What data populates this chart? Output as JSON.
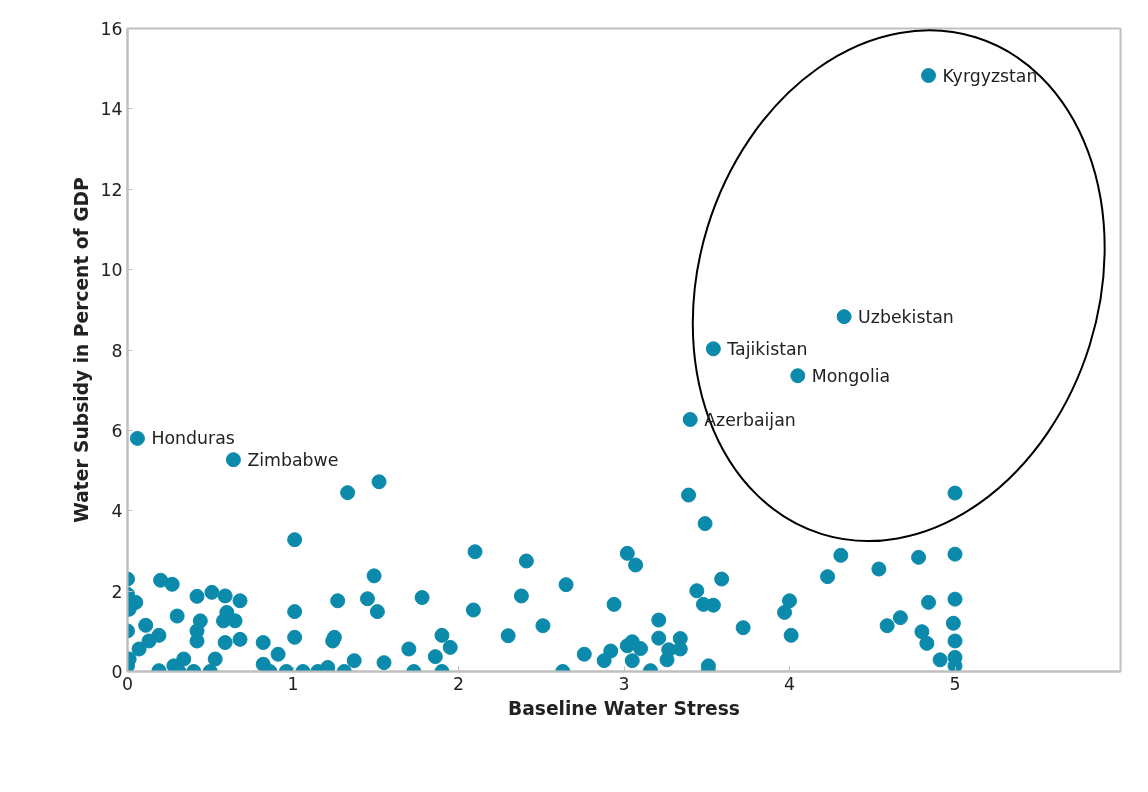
{
  "chart_data": {
    "type": "scatter",
    "xlabel": "Baseline Water Stress",
    "ylabel": "Water Subsidy in Percent of GDP",
    "xlim": [
      0,
      6
    ],
    "xticks": [
      0,
      1,
      2,
      3,
      4,
      5
    ],
    "ylim": [
      0,
      16
    ],
    "yticks": [
      0,
      2,
      4,
      6,
      8,
      10,
      12,
      14,
      16
    ],
    "grid": false,
    "marker": "circle",
    "series": [
      {
        "color": "#0b8aab",
        "x": [
          0.06,
          0.64,
          1.33,
          1.52,
          1.01,
          2.1,
          0.0,
          0.2,
          0.27,
          0.0,
          0.05,
          0.01,
          0.42,
          0.51,
          0.59,
          0.68,
          0.3,
          0.11,
          0.44,
          0.6,
          0.58,
          0.65,
          0.42,
          0.42,
          0.0,
          0.19,
          0.13,
          0.07,
          0.01,
          0.0,
          0.59,
          0.68,
          0.82,
          1.01,
          1.25,
          1.24,
          1.27,
          1.45,
          1.51,
          1.49,
          1.78,
          2.09,
          1.01,
          1.9,
          1.95,
          1.7,
          1.86,
          1.55,
          1.37,
          0.91,
          0.19,
          0.28,
          0.34,
          0.31,
          0.4,
          0.5,
          0.53,
          0.82,
          0.86,
          0.96,
          1.06,
          1.15,
          1.21,
          1.31,
          1.73,
          1.9,
          3.39,
          3.49,
          3.4,
          2.41,
          2.65,
          3.02,
          3.07,
          3.59,
          3.44,
          3.48,
          3.54,
          2.38,
          2.94,
          2.51,
          2.3,
          3.21,
          3.21,
          3.34,
          3.34,
          3.27,
          3.26,
          3.02,
          3.05,
          3.1,
          3.05,
          2.92,
          2.88,
          2.76,
          2.63,
          3.16,
          3.51,
          3.51,
          3.72,
          4.0,
          3.97,
          4.01,
          5.0,
          4.31,
          4.23,
          4.54,
          4.78,
          5.0,
          4.84,
          5.0,
          4.67,
          4.59,
          4.8,
          4.83,
          4.99,
          5.0,
          4.91,
          5.0,
          5.0,
          4.84,
          4.33,
          3.54,
          4.05
        ],
        "values": [
          5.8,
          5.27,
          4.45,
          4.72,
          3.28,
          2.98,
          2.3,
          2.27,
          2.17,
          1.92,
          1.72,
          1.55,
          1.87,
          1.97,
          1.88,
          1.76,
          1.38,
          1.15,
          1.26,
          1.47,
          1.26,
          1.26,
          1.01,
          0.76,
          1.01,
          0.9,
          0.76,
          0.56,
          0.31,
          0.14,
          0.72,
          0.8,
          0.72,
          0.85,
          0.85,
          0.76,
          1.76,
          1.81,
          1.49,
          2.38,
          1.84,
          1.53,
          1.49,
          0.9,
          0.6,
          0.56,
          0.37,
          0.22,
          0.27,
          0.43,
          0.02,
          0.14,
          0.31,
          0,
          0,
          0,
          0.31,
          0.18,
          0,
          0,
          0,
          0,
          0.1,
          0,
          0,
          0,
          4.39,
          3.68,
          6.27,
          2.75,
          2.16,
          2.94,
          2.65,
          2.3,
          2.01,
          1.67,
          1.65,
          1.88,
          1.67,
          1.14,
          0.89,
          1.28,
          0.83,
          0.82,
          0.56,
          0.54,
          0.29,
          0.64,
          0.74,
          0.57,
          0.27,
          0.51,
          0.27,
          0.43,
          0,
          0.02,
          0.14,
          0,
          1.09,
          1.76,
          1.47,
          0.9,
          4.44,
          2.89,
          2.36,
          2.55,
          2.84,
          2.92,
          1.72,
          1.8,
          1.34,
          1.14,
          0.99,
          0.7,
          1.2,
          0.76,
          0.29,
          0.35,
          0.14,
          14.83,
          8.83,
          8.03,
          7.36
        ]
      }
    ],
    "annotations": [
      {
        "text": "Kyrgyzstan",
        "x": 4.84,
        "y": 14.83
      },
      {
        "text": "Uzbekistan",
        "x": 4.33,
        "y": 8.83
      },
      {
        "text": "Tajikistan",
        "x": 3.54,
        "y": 8.03
      },
      {
        "text": "Mongolia",
        "x": 4.05,
        "y": 7.36
      },
      {
        "text": "Azerbaijan",
        "x": 3.4,
        "y": 6.27
      },
      {
        "text": "Honduras",
        "x": 0.06,
        "y": 5.8
      },
      {
        "text": "Zimbabwe",
        "x": 0.64,
        "y": 5.27
      }
    ]
  }
}
